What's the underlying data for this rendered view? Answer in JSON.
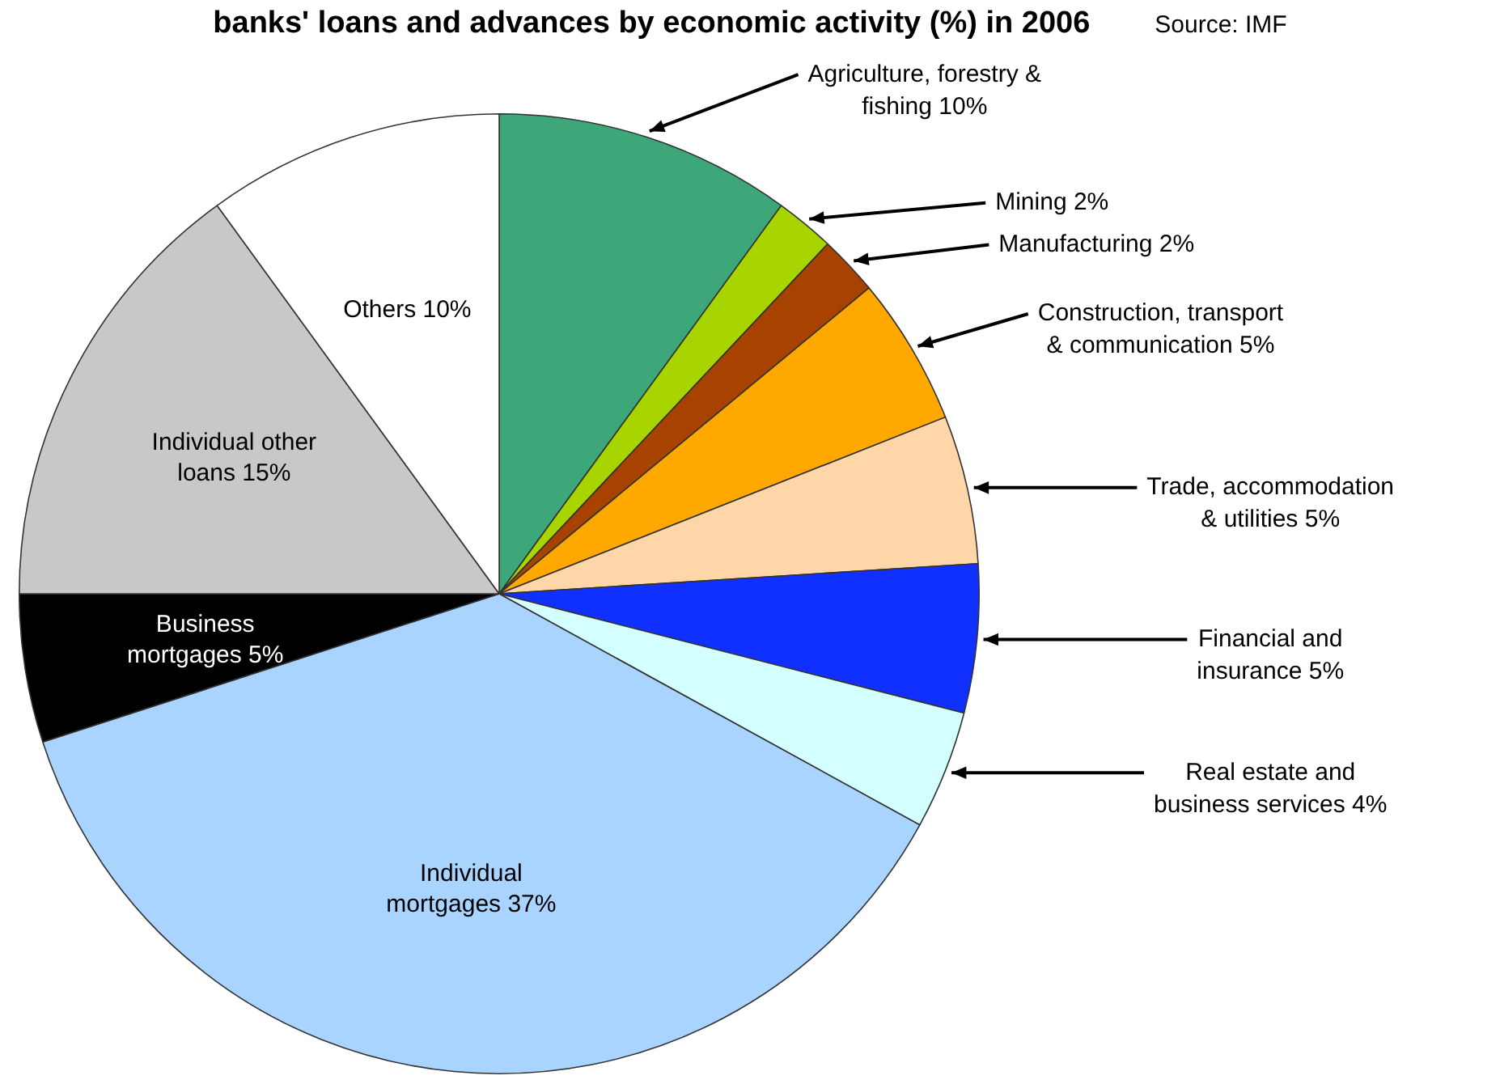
{
  "chart_data": {
    "type": "pie",
    "title": "banks' loans and advances by economic activity (%) in 2006",
    "annotations": [
      "Source: IMF"
    ],
    "categories": [
      "Agriculture, forestry & fishing",
      "Mining",
      "Manufacturing",
      "Construction, transport & communication",
      "Trade, accommodation & utilities",
      "Financial and insurance",
      "Real estate and business services",
      "Individual mortgages",
      "Business mortgages",
      "Individual other loans",
      "Others"
    ],
    "values": [
      10,
      2,
      2,
      5,
      5,
      5,
      4,
      37,
      5,
      15,
      10
    ],
    "value_labels": [
      "10%",
      "2%",
      "2%",
      "5%",
      "5%",
      "5%",
      "4%",
      "37%",
      "5%",
      "15%",
      "10%"
    ],
    "colors": [
      "#3ea77a",
      "#a8d400",
      "#a84200",
      "#ffa800",
      "#ffd6a8",
      "#1030ff",
      "#d4ffff",
      "#a8d4ff",
      "#000000",
      "#c8c8c8",
      "#ffffff"
    ],
    "legend": false
  }
}
